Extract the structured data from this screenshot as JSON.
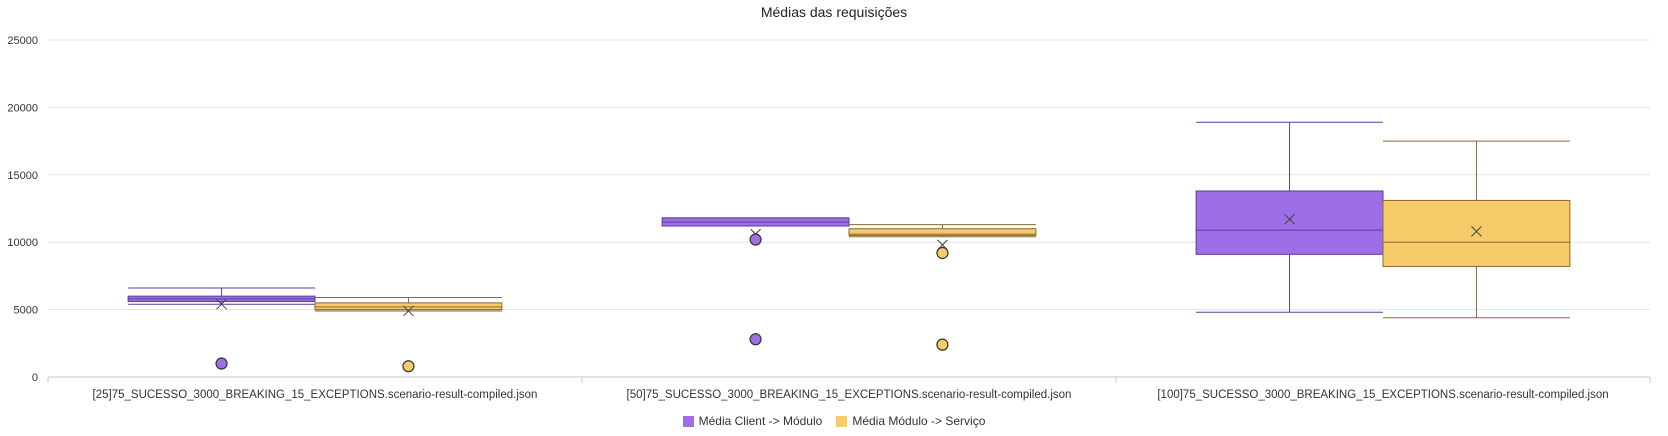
{
  "chart_data": {
    "type": "boxplot",
    "title": "Médias das requisições",
    "ylim": [
      0,
      25000
    ],
    "yticks": [
      0,
      5000,
      10000,
      15000,
      20000,
      25000
    ],
    "grid": true,
    "legend_position": "bottom-center",
    "categories": [
      "[25]75_SUCESSO_3000_BREAKING_15_EXCEPTIONS.scenario-result-compiled.json",
      "[50]75_SUCESSO_3000_BREAKING_15_EXCEPTIONS.scenario-result-compiled.json",
      "[100]75_SUCESSO_3000_BREAKING_15_EXCEPTIONS.scenario-result-compiled.json"
    ],
    "series": [
      {
        "name": "Média Client -> Módulo",
        "color": "#9d6ee6",
        "stroke": "#5a3d9a",
        "boxes": [
          {
            "min": 5400,
            "q1": 5600,
            "median": 5800,
            "q3": 6000,
            "max": 6600,
            "mean": 5400,
            "outliers": [
              1000
            ]
          },
          {
            "min": 11200,
            "q1": 11200,
            "median": 11500,
            "q3": 11800,
            "max": 11800,
            "mean": 10600,
            "outliers": [
              10200,
              2800
            ]
          },
          {
            "min": 4800,
            "q1": 9100,
            "median": 10900,
            "q3": 13800,
            "max": 18900,
            "mean": 11700,
            "outliers": []
          }
        ]
      },
      {
        "name": "Média Módulo -> Serviço",
        "color": "#f6cb6a",
        "stroke": "#8a6a30",
        "boxes": [
          {
            "min": 4900,
            "q1": 5000,
            "median": 5200,
            "q3": 5500,
            "max": 5900,
            "mean": 4900,
            "outliers": [
              800
            ]
          },
          {
            "min": 10400,
            "q1": 10500,
            "median": 10600,
            "q3": 11000,
            "max": 11300,
            "mean": 9800,
            "outliers": [
              9200,
              2400
            ]
          },
          {
            "min": 4400,
            "q1": 8200,
            "median": 10000,
            "q3": 13100,
            "max": 17500,
            "mean": 10800,
            "outliers": []
          }
        ]
      }
    ]
  }
}
